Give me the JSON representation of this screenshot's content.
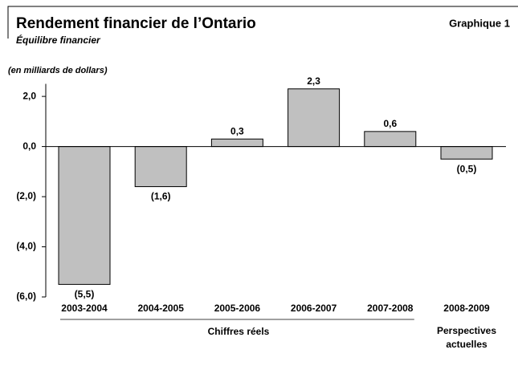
{
  "chart_data": {
    "type": "bar",
    "title": "Rendement financier de l’Ontario",
    "badge": "Graphique 1",
    "subtitle": "Équilibre financier",
    "y_label": "(en milliards de dollars)",
    "categories": [
      "2003-2004",
      "2004-2005",
      "2005-2006",
      "2006-2007",
      "2007-2008",
      "2008-2009"
    ],
    "values": [
      -5.5,
      -1.6,
      0.3,
      2.3,
      0.6,
      -0.5
    ],
    "value_labels": [
      "(5,5)",
      "(1,6)",
      "0,3",
      "2,3",
      "0,6",
      "(0,5)"
    ],
    "color": "#c0c0c0",
    "groups": [
      "Chiffres réels",
      "Perspectives actuelles"
    ],
    "ylim": [
      -6,
      2.5
    ],
    "yticks": [
      {
        "value": 2,
        "label": "2,0"
      },
      {
        "value": 0,
        "label": "0,0"
      },
      {
        "value": -2,
        "label": "(2,0)"
      },
      {
        "value": -4,
        "label": "(4,0)"
      },
      {
        "value": -6,
        "label": "(6,0)"
      }
    ]
  }
}
